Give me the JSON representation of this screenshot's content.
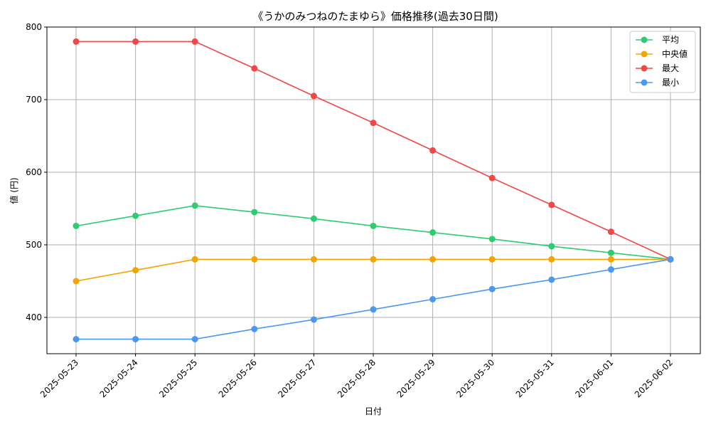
{
  "chart_data": {
    "type": "line",
    "title": "《うかのみつねのたまゆら》価格推移(過去30日間)",
    "xlabel": "日付",
    "ylabel": "値 (円)",
    "categories": [
      "2025-05-23",
      "2025-05-24",
      "2025-05-25",
      "2025-05-26",
      "2025-05-27",
      "2025-05-28",
      "2025-05-29",
      "2025-05-30",
      "2025-05-31",
      "2025-06-01",
      "2025-06-02"
    ],
    "ylim": [
      350,
      800
    ],
    "yticks": [
      400,
      500,
      600,
      700,
      800
    ],
    "grid": true,
    "legend_position": "top-right",
    "series": [
      {
        "name": "平均",
        "color": "#2ecc71",
        "values": [
          526,
          540,
          554,
          545,
          536,
          526,
          517,
          508,
          498,
          489,
          480
        ]
      },
      {
        "name": "中央値",
        "color": "#f5a300",
        "values": [
          450,
          465,
          480,
          480,
          480,
          480,
          480,
          480,
          480,
          480,
          480
        ]
      },
      {
        "name": "最大",
        "color": "#f04747",
        "values": [
          780,
          780,
          780,
          743,
          705,
          668,
          630,
          592,
          555,
          518,
          480
        ]
      },
      {
        "name": "最小",
        "color": "#4a98f0",
        "values": [
          370,
          370,
          370,
          384,
          397,
          411,
          425,
          439,
          452,
          466,
          480
        ]
      }
    ]
  }
}
